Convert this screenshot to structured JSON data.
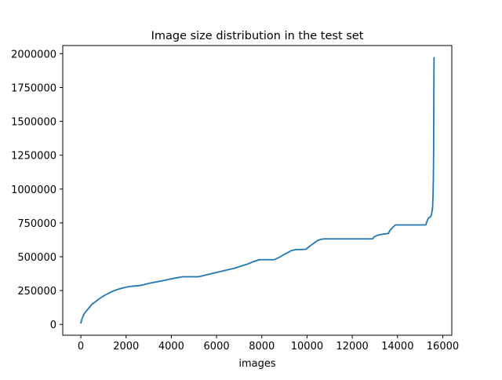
{
  "chart_data": {
    "type": "line",
    "title": "Image size distribution in the test set",
    "xlabel": "images",
    "ylabel": "",
    "xlim": [
      -800,
      16400
    ],
    "ylim": [
      -80000,
      2060000
    ],
    "xticks": [
      0,
      2000,
      4000,
      6000,
      8000,
      10000,
      12000,
      14000,
      16000
    ],
    "xtick_labels": [
      "0",
      "2000",
      "4000",
      "6000",
      "8000",
      "10000",
      "12000",
      "14000",
      "16000"
    ],
    "yticks": [
      0,
      250000,
      500000,
      750000,
      1000000,
      1250000,
      1500000,
      1750000,
      2000000
    ],
    "ytick_labels": [
      "0",
      "250000",
      "500000",
      "750000",
      "1000000",
      "1250000",
      "1500000",
      "1750000",
      "2000000"
    ],
    "grid": false,
    "legend": "none",
    "line_color": "#1f77b4",
    "series": [
      {
        "x": [
          0,
          50,
          120,
          220,
          350,
          500,
          650,
          800,
          1000,
          1200,
          1450,
          1700,
          2000,
          2250,
          2500,
          2700,
          3000,
          3300,
          3600,
          3900,
          4200,
          4500,
          4800,
          5200,
          5600,
          6000,
          6400,
          6800,
          7100,
          7400,
          7700,
          7900,
          8200,
          8550,
          8800,
          9000,
          9200,
          9300,
          9500,
          9700,
          9950,
          10100,
          10200,
          10300,
          10450,
          10600,
          10750,
          11000,
          11500,
          12000,
          12500,
          12900,
          12950,
          13100,
          13300,
          13500,
          13600,
          13650,
          13750,
          13900,
          14200,
          14600,
          15000,
          15250,
          15300,
          15350,
          15400,
          15450,
          15500,
          15550,
          15570,
          15585,
          15595,
          15600,
          15605,
          15610,
          15615
        ],
        "values": [
          10000,
          40000,
          70000,
          95000,
          120000,
          150000,
          168000,
          188000,
          210000,
          228000,
          248000,
          262000,
          275000,
          282000,
          285000,
          290000,
          303000,
          313000,
          322000,
          333000,
          343000,
          352000,
          352000,
          352000,
          368000,
          384000,
          400000,
          415000,
          432000,
          448000,
          468000,
          478000,
          478000,
          478000,
          498000,
          518000,
          535000,
          545000,
          553000,
          553000,
          555000,
          575000,
          588000,
          600000,
          618000,
          628000,
          632000,
          632000,
          632000,
          632000,
          632000,
          632000,
          645000,
          658000,
          665000,
          670000,
          672000,
          690000,
          710000,
          735000,
          735000,
          735000,
          735000,
          735000,
          760000,
          780000,
          790000,
          793000,
          810000,
          860000,
          950000,
          1080000,
          1250000,
          1450000,
          1650000,
          1850000,
          1970000
        ]
      }
    ]
  }
}
